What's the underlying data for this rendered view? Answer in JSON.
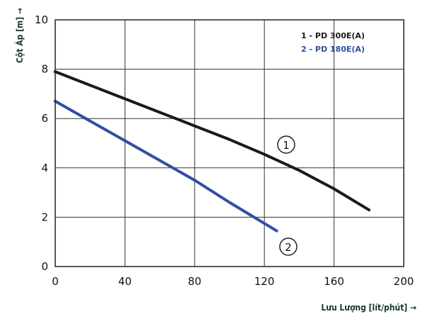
{
  "chart_data": {
    "type": "line",
    "xlabel": "Lưu Lượng [lít/phút] →",
    "ylabel": "Cột Áp [m] →",
    "xlim": [
      0,
      200
    ],
    "ylim": [
      0,
      10
    ],
    "x_ticks": [
      "0",
      "40",
      "80",
      "120",
      "160",
      "200"
    ],
    "y_ticks": [
      "0",
      "2",
      "4",
      "6",
      "8",
      "10"
    ],
    "grid": true,
    "legend_position": "top-right",
    "series": [
      {
        "name": "1 - PD 300E(A)",
        "marker": "1",
        "color": "#1a1a1a",
        "x": [
          0,
          20,
          40,
          60,
          80,
          100,
          120,
          140,
          160,
          180
        ],
        "y": [
          7.9,
          7.35,
          6.8,
          6.25,
          5.7,
          5.15,
          4.55,
          3.9,
          3.15,
          2.3
        ]
      },
      {
        "name": "2 - PD 180E(A)",
        "marker": "2",
        "color": "#2e4fa3",
        "x": [
          0,
          20,
          40,
          60,
          80,
          100,
          127
        ],
        "y": [
          6.7,
          5.9,
          5.1,
          4.3,
          3.5,
          2.6,
          1.45
        ]
      }
    ]
  }
}
